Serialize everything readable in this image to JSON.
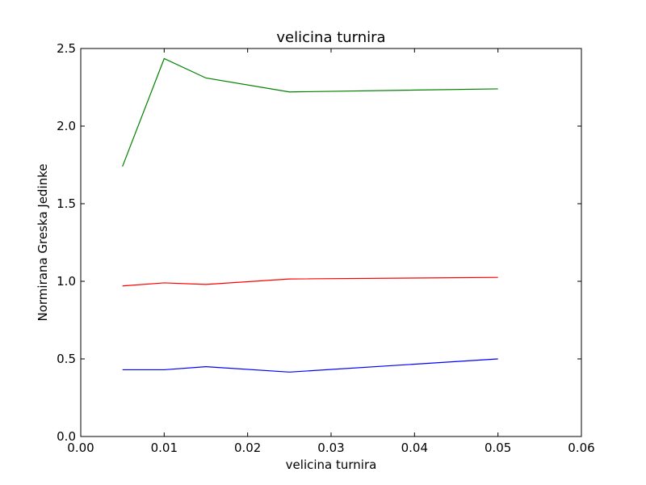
{
  "chart_data": {
    "type": "line",
    "title": "velicina turnira",
    "xlabel": "velicina turnira",
    "ylabel": "Normirana Greska Jedinke",
    "xlim": [
      0.0,
      0.06
    ],
    "ylim": [
      0.0,
      2.5
    ],
    "xticks": [
      "0.00",
      "0.01",
      "0.02",
      "0.03",
      "0.04",
      "0.05",
      "0.06"
    ],
    "yticks": [
      "0.0",
      "0.5",
      "1.0",
      "1.5",
      "2.0",
      "2.5"
    ],
    "grid": false,
    "x": [
      0.005,
      0.01,
      0.015,
      0.025,
      0.05
    ],
    "series": [
      {
        "color": "#008000",
        "values": [
          1.74,
          2.435,
          2.31,
          2.22,
          2.24
        ]
      },
      {
        "color": "#ff0000",
        "values": [
          0.97,
          0.99,
          0.98,
          1.015,
          1.025
        ]
      },
      {
        "color": "#0000ff",
        "values": [
          0.43,
          0.43,
          0.45,
          0.415,
          0.5
        ]
      }
    ]
  }
}
